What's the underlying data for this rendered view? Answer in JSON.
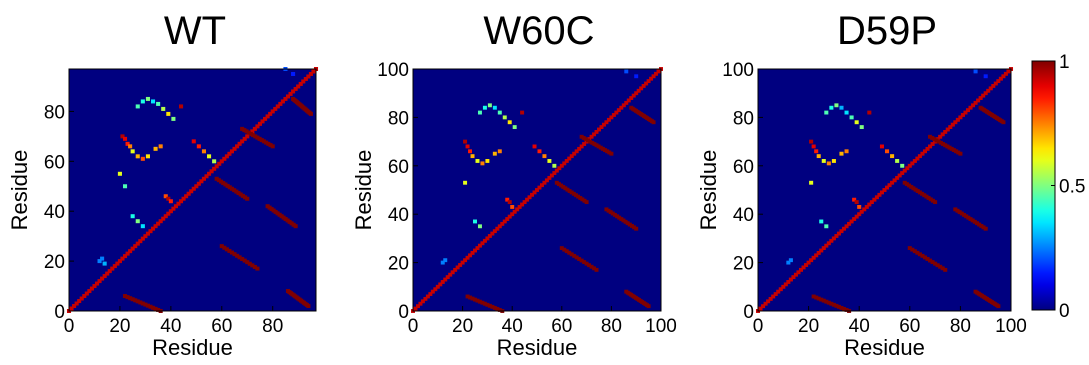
{
  "chart_data": [
    {
      "type": "heatmap",
      "title": "WT",
      "xlabel": "Residue",
      "ylabel": "Residue",
      "xlim": [
        0,
        97
      ],
      "ylim": [
        0,
        97
      ],
      "xticks": [
        "0",
        "20",
        "40",
        "60",
        "80"
      ],
      "yticks": [
        "0",
        "20",
        "40",
        "60",
        "80"
      ],
      "background_value": 0,
      "upper_triangle": [
        {
          "x": 12,
          "y": 20,
          "value": 0.25
        },
        {
          "x": 13,
          "y": 21,
          "value": 0.25
        },
        {
          "x": 14,
          "y": 19,
          "value": 0.3
        },
        {
          "x": 21,
          "y": 70,
          "value": 0.95
        },
        {
          "x": 22,
          "y": 69,
          "value": 0.9
        },
        {
          "x": 23,
          "y": 67,
          "value": 0.85
        },
        {
          "x": 24,
          "y": 66,
          "value": 0.75
        },
        {
          "x": 25,
          "y": 64,
          "value": 0.6
        },
        {
          "x": 27,
          "y": 62,
          "value": 0.7
        },
        {
          "x": 29,
          "y": 61,
          "value": 0.8
        },
        {
          "x": 31,
          "y": 62,
          "value": 0.65
        },
        {
          "x": 34,
          "y": 65,
          "value": 0.7
        },
        {
          "x": 36,
          "y": 66,
          "value": 0.75
        },
        {
          "x": 27,
          "y": 82,
          "value": 0.45
        },
        {
          "x": 29,
          "y": 84,
          "value": 0.4
        },
        {
          "x": 31,
          "y": 85,
          "value": 0.5
        },
        {
          "x": 33,
          "y": 84,
          "value": 0.35
        },
        {
          "x": 35,
          "y": 83,
          "value": 0.45
        },
        {
          "x": 37,
          "y": 81,
          "value": 0.55
        },
        {
          "x": 39,
          "y": 79,
          "value": 0.65
        },
        {
          "x": 41,
          "y": 77,
          "value": 0.5
        },
        {
          "x": 44,
          "y": 82,
          "value": 0.95
        },
        {
          "x": 49,
          "y": 68,
          "value": 0.9
        },
        {
          "x": 51,
          "y": 66,
          "value": 0.85
        },
        {
          "x": 53,
          "y": 64,
          "value": 0.75
        },
        {
          "x": 55,
          "y": 62,
          "value": 0.6
        },
        {
          "x": 57,
          "y": 60,
          "value": 0.55
        },
        {
          "x": 38,
          "y": 46,
          "value": 0.8
        },
        {
          "x": 39,
          "y": 45,
          "value": 0.95
        },
        {
          "x": 40,
          "y": 44,
          "value": 0.85
        },
        {
          "x": 25,
          "y": 38,
          "value": 0.4
        },
        {
          "x": 27,
          "y": 36,
          "value": 0.5
        },
        {
          "x": 29,
          "y": 34,
          "value": 0.35
        },
        {
          "x": 20,
          "y": 55,
          "value": 0.6
        },
        {
          "x": 22,
          "y": 50,
          "value": 0.45
        },
        {
          "x": 85,
          "y": 97,
          "value": 0.2
        },
        {
          "x": 88,
          "y": 95,
          "value": 0.15
        }
      ],
      "lower_triangle_segments": [
        {
          "x": [
            22,
            36
          ],
          "y": [
            6,
            0
          ],
          "value": 1
        },
        {
          "x": [
            58,
            70
          ],
          "y": [
            53,
            45
          ],
          "value": 1
        },
        {
          "x": [
            60,
            74
          ],
          "y": [
            26,
            17
          ],
          "value": 1
        },
        {
          "x": [
            78,
            89
          ],
          "y": [
            42,
            34
          ],
          "value": 1
        },
        {
          "x": [
            86,
            94
          ],
          "y": [
            8,
            2
          ],
          "value": 1
        },
        {
          "x": [
            88,
            95
          ],
          "y": [
            85,
            79
          ],
          "value": 1
        },
        {
          "x": [
            68,
            80
          ],
          "y": [
            73,
            66
          ],
          "value": 1
        }
      ]
    },
    {
      "type": "heatmap",
      "title": "W60C",
      "xlabel": "Residue",
      "ylabel": "Residue",
      "xlim": [
        0,
        100
      ],
      "ylim": [
        0,
        100
      ],
      "xticks": [
        "0",
        "20",
        "40",
        "60",
        "80",
        "100"
      ],
      "yticks": [
        "0",
        "20",
        "40",
        "60",
        "80",
        "100"
      ],
      "background_value": 0,
      "upper_triangle": [
        {
          "x": 12,
          "y": 20,
          "value": 0.25
        },
        {
          "x": 13,
          "y": 21,
          "value": 0.25
        },
        {
          "x": 21,
          "y": 70,
          "value": 0.95
        },
        {
          "x": 22,
          "y": 68,
          "value": 0.9
        },
        {
          "x": 23,
          "y": 66,
          "value": 0.85
        },
        {
          "x": 24,
          "y": 64,
          "value": 0.7
        },
        {
          "x": 26,
          "y": 62,
          "value": 0.6
        },
        {
          "x": 28,
          "y": 61,
          "value": 0.75
        },
        {
          "x": 30,
          "y": 62,
          "value": 0.65
        },
        {
          "x": 33,
          "y": 65,
          "value": 0.7
        },
        {
          "x": 35,
          "y": 66,
          "value": 0.75
        },
        {
          "x": 27,
          "y": 82,
          "value": 0.45
        },
        {
          "x": 29,
          "y": 84,
          "value": 0.4
        },
        {
          "x": 31,
          "y": 85,
          "value": 0.5
        },
        {
          "x": 33,
          "y": 84,
          "value": 0.35
        },
        {
          "x": 35,
          "y": 82,
          "value": 0.45
        },
        {
          "x": 37,
          "y": 80,
          "value": 0.55
        },
        {
          "x": 39,
          "y": 78,
          "value": 0.65
        },
        {
          "x": 41,
          "y": 76,
          "value": 0.5
        },
        {
          "x": 44,
          "y": 82,
          "value": 0.95
        },
        {
          "x": 49,
          "y": 68,
          "value": 0.9
        },
        {
          "x": 51,
          "y": 66,
          "value": 0.85
        },
        {
          "x": 53,
          "y": 64,
          "value": 0.75
        },
        {
          "x": 55,
          "y": 62,
          "value": 0.6
        },
        {
          "x": 57,
          "y": 60,
          "value": 0.55
        },
        {
          "x": 38,
          "y": 46,
          "value": 0.85
        },
        {
          "x": 39,
          "y": 45,
          "value": 0.95
        },
        {
          "x": 40,
          "y": 43,
          "value": 0.8
        },
        {
          "x": 25,
          "y": 37,
          "value": 0.4
        },
        {
          "x": 27,
          "y": 35,
          "value": 0.5
        },
        {
          "x": 21,
          "y": 53,
          "value": 0.6
        },
        {
          "x": 86,
          "y": 99,
          "value": 0.2
        },
        {
          "x": 90,
          "y": 97,
          "value": 0.15
        }
      ],
      "lower_triangle_segments": [
        {
          "x": [
            22,
            36
          ],
          "y": [
            6,
            0
          ],
          "value": 1
        },
        {
          "x": [
            58,
            70
          ],
          "y": [
            53,
            45
          ],
          "value": 1
        },
        {
          "x": [
            60,
            74
          ],
          "y": [
            26,
            17
          ],
          "value": 1
        },
        {
          "x": [
            78,
            90
          ],
          "y": [
            42,
            34
          ],
          "value": 1
        },
        {
          "x": [
            86,
            95
          ],
          "y": [
            8,
            2
          ],
          "value": 1
        },
        {
          "x": [
            88,
            97
          ],
          "y": [
            84,
            78
          ],
          "value": 1
        },
        {
          "x": [
            68,
            80
          ],
          "y": [
            72,
            65
          ],
          "value": 1
        }
      ]
    },
    {
      "type": "heatmap",
      "title": "D59P",
      "xlabel": "Residue",
      "ylabel": "Residue",
      "xlim": [
        0,
        100
      ],
      "ylim": [
        0,
        100
      ],
      "xticks": [
        "0",
        "20",
        "40",
        "60",
        "80",
        "100"
      ],
      "yticks": [
        "0",
        "20",
        "40",
        "60",
        "80",
        "100"
      ],
      "background_value": 0,
      "upper_triangle": [
        {
          "x": 12,
          "y": 20,
          "value": 0.25
        },
        {
          "x": 13,
          "y": 21,
          "value": 0.25
        },
        {
          "x": 21,
          "y": 70,
          "value": 0.95
        },
        {
          "x": 22,
          "y": 68,
          "value": 0.9
        },
        {
          "x": 23,
          "y": 66,
          "value": 0.85
        },
        {
          "x": 24,
          "y": 64,
          "value": 0.7
        },
        {
          "x": 26,
          "y": 62,
          "value": 0.6
        },
        {
          "x": 28,
          "y": 61,
          "value": 0.75
        },
        {
          "x": 30,
          "y": 62,
          "value": 0.65
        },
        {
          "x": 33,
          "y": 65,
          "value": 0.7
        },
        {
          "x": 35,
          "y": 66,
          "value": 0.75
        },
        {
          "x": 27,
          "y": 82,
          "value": 0.45
        },
        {
          "x": 29,
          "y": 84,
          "value": 0.4
        },
        {
          "x": 31,
          "y": 85,
          "value": 0.5
        },
        {
          "x": 33,
          "y": 84,
          "value": 0.3
        },
        {
          "x": 35,
          "y": 82,
          "value": 0.35
        },
        {
          "x": 37,
          "y": 80,
          "value": 0.45
        },
        {
          "x": 39,
          "y": 78,
          "value": 0.6
        },
        {
          "x": 41,
          "y": 76,
          "value": 0.5
        },
        {
          "x": 44,
          "y": 82,
          "value": 0.95
        },
        {
          "x": 49,
          "y": 68,
          "value": 0.9
        },
        {
          "x": 51,
          "y": 66,
          "value": 0.8
        },
        {
          "x": 53,
          "y": 64,
          "value": 0.7
        },
        {
          "x": 55,
          "y": 62,
          "value": 0.55
        },
        {
          "x": 57,
          "y": 60,
          "value": 0.5
        },
        {
          "x": 38,
          "y": 46,
          "value": 0.85
        },
        {
          "x": 39,
          "y": 45,
          "value": 0.95
        },
        {
          "x": 40,
          "y": 43,
          "value": 0.8
        },
        {
          "x": 25,
          "y": 37,
          "value": 0.4
        },
        {
          "x": 27,
          "y": 35,
          "value": 0.45
        },
        {
          "x": 21,
          "y": 53,
          "value": 0.6
        },
        {
          "x": 86,
          "y": 99,
          "value": 0.2
        },
        {
          "x": 90,
          "y": 97,
          "value": 0.15
        }
      ],
      "lower_triangle_segments": [
        {
          "x": [
            22,
            36
          ],
          "y": [
            6,
            0
          ],
          "value": 1
        },
        {
          "x": [
            58,
            70
          ],
          "y": [
            53,
            45
          ],
          "value": 1
        },
        {
          "x": [
            60,
            74
          ],
          "y": [
            26,
            17
          ],
          "value": 1
        },
        {
          "x": [
            78,
            90
          ],
          "y": [
            42,
            34
          ],
          "value": 1
        },
        {
          "x": [
            86,
            95
          ],
          "y": [
            8,
            2
          ],
          "value": 1
        },
        {
          "x": [
            88,
            97
          ],
          "y": [
            84,
            78
          ],
          "value": 1
        },
        {
          "x": [
            68,
            80
          ],
          "y": [
            72,
            65
          ],
          "value": 1
        }
      ]
    }
  ],
  "colorbar": {
    "range": [
      0,
      1
    ],
    "ticks": [
      "0",
      "0.5",
      "1"
    ],
    "colormap": "jet"
  }
}
